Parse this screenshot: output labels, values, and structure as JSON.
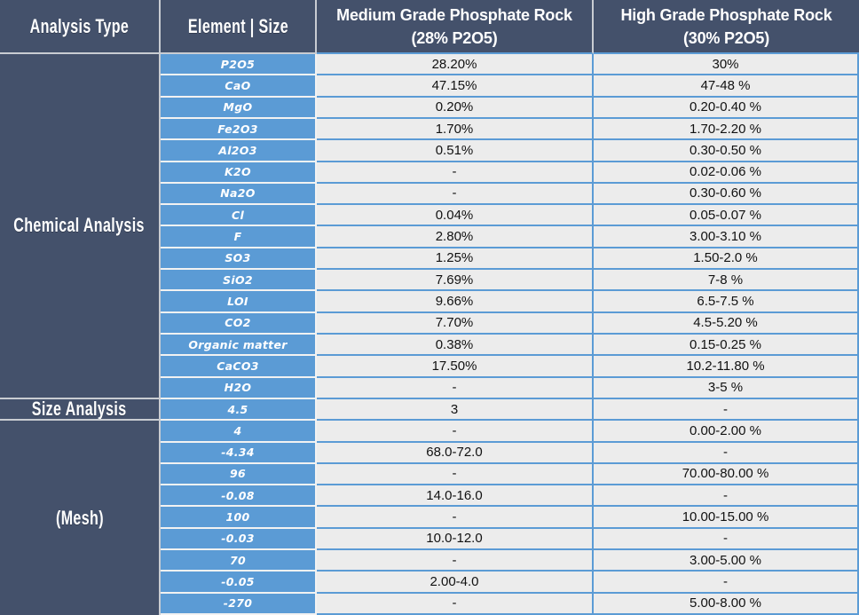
{
  "chart_data": {
    "type": "table",
    "columns": [
      "Analysis Type",
      "Element | Size",
      "Medium Grade Phosphate Rock (28% P2O5)",
      "High Grade Phosphate Rock (30% P2O5)"
    ],
    "sections": [
      {
        "label": "Chemical Analysis",
        "span": 16
      },
      {
        "label": "Size Analysis",
        "span": 1
      },
      {
        "label": "(Mesh)",
        "span": 9
      }
    ],
    "rows": [
      [
        "P2O5",
        "28.20%",
        "30%"
      ],
      [
        "CaO",
        "47.15%",
        "47-48 %"
      ],
      [
        "MgO",
        "0.20%",
        "0.20-0.40 %"
      ],
      [
        "Fe2O3",
        "1.70%",
        "1.70-2.20 %"
      ],
      [
        "Al2O3",
        "0.51%",
        "0.30-0.50 %"
      ],
      [
        "K2O",
        "-",
        "0.02-0.06 %"
      ],
      [
        "Na2O",
        "-",
        "0.30-0.60 %"
      ],
      [
        "Cl",
        "0.04%",
        "0.05-0.07 %"
      ],
      [
        "F",
        "2.80%",
        "3.00-3.10 %"
      ],
      [
        "SO3",
        "1.25%",
        "1.50-2.0 %"
      ],
      [
        "SiO2",
        "7.69%",
        "7-8 %"
      ],
      [
        "LOI",
        "9.66%",
        "6.5-7.5 %"
      ],
      [
        "CO2",
        "7.70%",
        "4.5-5.20 %"
      ],
      [
        "Organic matter",
        "0.38%",
        "0.15-0.25 %"
      ],
      [
        "CaCO3",
        "17.50%",
        "10.2-11.80 %"
      ],
      [
        "H2O",
        "-",
        "3-5 %"
      ],
      [
        "4.5",
        "3",
        "-"
      ],
      [
        "4",
        "-",
        "0.00-2.00 %"
      ],
      [
        "-4.34",
        "68.0-72.0",
        "-"
      ],
      [
        "96",
        "-",
        "70.00-80.00 %"
      ],
      [
        "-0.08",
        "14.0-16.0",
        "-"
      ],
      [
        "100",
        "-",
        "10.00-15.00 %"
      ],
      [
        "-0.03",
        "10.0-12.0",
        "-"
      ],
      [
        "70",
        "-",
        "3.00-5.00 %"
      ],
      [
        "-0.05",
        "2.00-4.0",
        "-"
      ],
      [
        "-270",
        "-",
        "5.00-8.00 %"
      ]
    ]
  },
  "header": {
    "analysis_type": "Analysis Type",
    "element_size": "Element | Size",
    "medium_line1": "Medium Grade Phosphate Rock",
    "medium_line2": "(28% P2O5)",
    "high_line1": "High Grade Phosphate Rock",
    "high_line2": "(30% P2O5)"
  },
  "colors": {
    "header_bg": "#44516B",
    "element_bg": "#5B9BD5",
    "value_bg": "#ECECEC",
    "grid_blue": "#5B9BD5",
    "grid_gray": "#C9CCD2",
    "grid_white": "#F2F2F2",
    "text_light": "#FFFFFF",
    "text_dark": "#111111"
  }
}
